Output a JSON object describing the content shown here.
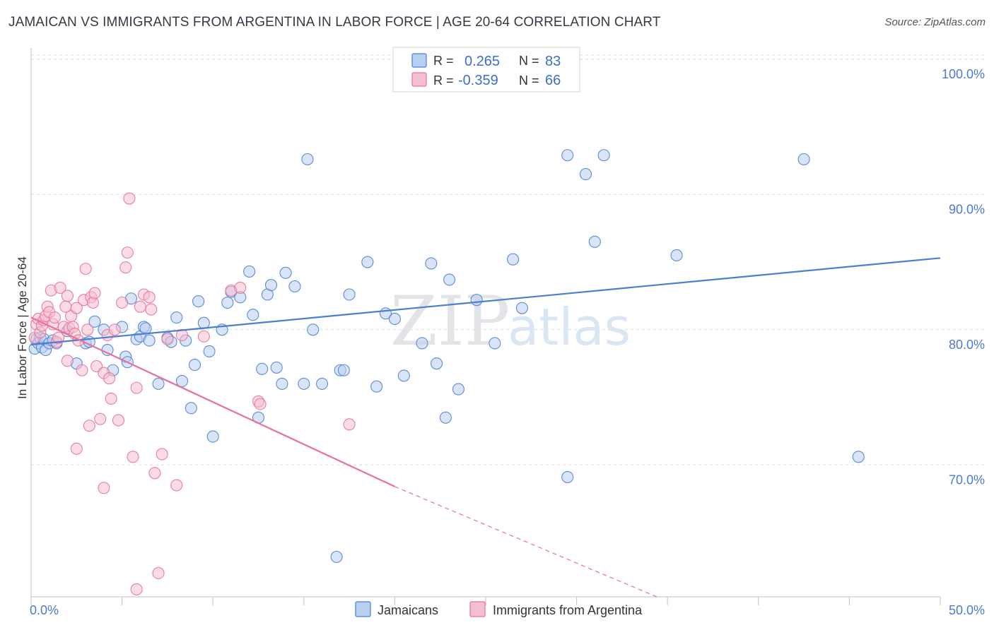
{
  "title": "JAMAICAN VS IMMIGRANTS FROM ARGENTINA IN LABOR FORCE | AGE 20-64 CORRELATION CHART",
  "source": "Source: ZipAtlas.com",
  "watermark": {
    "part1": "ZIP",
    "part2": "atlas"
  },
  "colors": {
    "blue": "#4a7fd4",
    "blue_fill": "#b9cff0",
    "pink": "#e8709a",
    "pink_fill": "#f6bfd0",
    "grid": "#d8d8d8",
    "tick_text": "#4a7bd0"
  },
  "legend": {
    "rows": [
      {
        "r_label": "R =",
        "r_value": "0.265",
        "n_label": "N =",
        "n_value": "83",
        "series": "blue"
      },
      {
        "r_label": "R =",
        "r_value": "-0.359",
        "n_label": "N =",
        "n_value": "66",
        "series": "pink"
      }
    ]
  },
  "chart_data": {
    "type": "scatter",
    "title": "JAMAICAN VS IMMIGRANTS FROM ARGENTINA IN LABOR FORCE | AGE 20-64 CORRELATION CHART",
    "xlabel": "",
    "ylabel": "In Labor Force | Age 20-64",
    "xlim": [
      0,
      50
    ],
    "ylim": [
      60,
      101
    ],
    "x_tick_labels": [
      "0.0%",
      "50.0%"
    ],
    "y_ticks": [
      70,
      80,
      90,
      100
    ],
    "y_tick_labels": [
      "70.0%",
      "80.0%",
      "90.0%",
      "100.0%"
    ],
    "grid": true,
    "legend_position": "top-center",
    "series": [
      {
        "name": "Jamaicans",
        "color": "#4a7fd4",
        "trend": {
          "x": [
            0,
            50
          ],
          "y": [
            78.9,
            85.3
          ],
          "style": "solid"
        },
        "points": [
          [
            0.2,
            78.6
          ],
          [
            0.3,
            79.3
          ],
          [
            0.4,
            79.0
          ],
          [
            0.5,
            79.4
          ],
          [
            0.6,
            78.7
          ],
          [
            0.7,
            79.3
          ],
          [
            0.8,
            78.5
          ],
          [
            1.0,
            79.0
          ],
          [
            1.2,
            79.2
          ],
          [
            1.4,
            79.0
          ],
          [
            2.0,
            79.9
          ],
          [
            2.5,
            77.5
          ],
          [
            3.0,
            79.0
          ],
          [
            3.2,
            79.1
          ],
          [
            3.5,
            80.6
          ],
          [
            4.0,
            80.0
          ],
          [
            4.2,
            78.5
          ],
          [
            4.5,
            77.0
          ],
          [
            5.0,
            80.2
          ],
          [
            5.2,
            78.0
          ],
          [
            5.3,
            77.6
          ],
          [
            5.5,
            82.3
          ],
          [
            5.8,
            79.3
          ],
          [
            6.0,
            79.5
          ],
          [
            6.2,
            80.2
          ],
          [
            6.3,
            80.1
          ],
          [
            6.5,
            79.2
          ],
          [
            7.0,
            76.0
          ],
          [
            7.5,
            79.4
          ],
          [
            7.7,
            79.1
          ],
          [
            8.0,
            80.9
          ],
          [
            8.3,
            76.2
          ],
          [
            8.5,
            79.2
          ],
          [
            8.8,
            74.2
          ],
          [
            9.0,
            77.4
          ],
          [
            9.2,
            82.1
          ],
          [
            9.5,
            80.5
          ],
          [
            9.8,
            78.4
          ],
          [
            10.0,
            72.1
          ],
          [
            10.5,
            80.0
          ],
          [
            10.8,
            82.0
          ],
          [
            11.0,
            82.8
          ],
          [
            11.5,
            82.4
          ],
          [
            12.0,
            84.3
          ],
          [
            12.2,
            81.1
          ],
          [
            12.5,
            73.5
          ],
          [
            12.7,
            77.1
          ],
          [
            13.0,
            82.6
          ],
          [
            13.2,
            83.3
          ],
          [
            13.5,
            77.2
          ],
          [
            13.8,
            76.0
          ],
          [
            14.0,
            84.2
          ],
          [
            14.5,
            83.2
          ],
          [
            15.0,
            76.0
          ],
          [
            15.2,
            92.6
          ],
          [
            15.5,
            80.0
          ],
          [
            16.0,
            76.0
          ],
          [
            17.0,
            77.0
          ],
          [
            17.2,
            77.0
          ],
          [
            17.5,
            82.6
          ],
          [
            16.8,
            63.2
          ],
          [
            18.5,
            85.0
          ],
          [
            19.0,
            75.8
          ],
          [
            19.5,
            81.2
          ],
          [
            20.0,
            80.8
          ],
          [
            20.5,
            76.6
          ],
          [
            21.5,
            79.0
          ],
          [
            22.0,
            84.9
          ],
          [
            22.3,
            77.5
          ],
          [
            22.8,
            73.5
          ],
          [
            23.0,
            83.7
          ],
          [
            23.5,
            75.6
          ],
          [
            24.5,
            82.2
          ],
          [
            25.5,
            79.0
          ],
          [
            26.5,
            85.2
          ],
          [
            27.0,
            81.6
          ],
          [
            29.5,
            92.9
          ],
          [
            30.5,
            91.5
          ],
          [
            31.0,
            86.5
          ],
          [
            31.5,
            92.9
          ],
          [
            35.5,
            85.5
          ],
          [
            42.5,
            92.6
          ],
          [
            45.5,
            70.6
          ],
          [
            29.5,
            69.1
          ]
        ]
      },
      {
        "name": "Immigrants from Argentina",
        "color": "#e8709a",
        "trend": {
          "x": [
            0,
            20
          ],
          "y": [
            80.9,
            68.4
          ],
          "style": "solid",
          "dashed_extension": {
            "x": [
              20,
              34.5
            ],
            "y": [
              68.4,
              60.2
            ]
          }
        },
        "points": [
          [
            0.2,
            79.4
          ],
          [
            0.3,
            80.4
          ],
          [
            0.4,
            80.8
          ],
          [
            0.5,
            79.8
          ],
          [
            0.6,
            80.3
          ],
          [
            0.7,
            80.7
          ],
          [
            0.8,
            81.0
          ],
          [
            0.9,
            81.7
          ],
          [
            1.0,
            81.3
          ],
          [
            1.1,
            82.9
          ],
          [
            1.2,
            80.4
          ],
          [
            1.3,
            80.9
          ],
          [
            1.4,
            79.1
          ],
          [
            1.5,
            79.4
          ],
          [
            1.6,
            83.1
          ],
          [
            1.8,
            80.2
          ],
          [
            1.9,
            81.7
          ],
          [
            2.0,
            82.5
          ],
          [
            2.1,
            80.1
          ],
          [
            2.2,
            81.0
          ],
          [
            2.3,
            80.2
          ],
          [
            2.4,
            79.7
          ],
          [
            2.5,
            81.6
          ],
          [
            2.6,
            79.2
          ],
          [
            2.8,
            77.0
          ],
          [
            2.9,
            82.2
          ],
          [
            3.0,
            84.5
          ],
          [
            3.1,
            80.0
          ],
          [
            3.3,
            82.4
          ],
          [
            3.4,
            82.0
          ],
          [
            3.5,
            82.7
          ],
          [
            3.6,
            77.3
          ],
          [
            3.8,
            73.4
          ],
          [
            4.0,
            76.8
          ],
          [
            4.2,
            79.6
          ],
          [
            4.3,
            76.4
          ],
          [
            4.4,
            74.9
          ],
          [
            4.6,
            80.0
          ],
          [
            4.8,
            73.3
          ],
          [
            5.0,
            82.0
          ],
          [
            5.2,
            84.6
          ],
          [
            5.3,
            85.7
          ],
          [
            5.4,
            89.7
          ],
          [
            5.6,
            70.6
          ],
          [
            5.8,
            75.7
          ],
          [
            6.0,
            81.7
          ],
          [
            6.2,
            82.6
          ],
          [
            6.5,
            82.4
          ],
          [
            6.6,
            81.5
          ],
          [
            6.8,
            69.4
          ],
          [
            7.0,
            62.0
          ],
          [
            7.2,
            70.8
          ],
          [
            7.5,
            79.3
          ],
          [
            8.0,
            68.5
          ],
          [
            8.3,
            79.6
          ],
          [
            9.5,
            79.5
          ],
          [
            11.0,
            82.9
          ],
          [
            11.5,
            83.1
          ],
          [
            12.5,
            74.7
          ],
          [
            12.6,
            74.5
          ],
          [
            17.5,
            73.0
          ],
          [
            2.0,
            77.7
          ],
          [
            3.2,
            72.9
          ],
          [
            2.5,
            71.2
          ],
          [
            4.0,
            68.3
          ],
          [
            5.8,
            60.8
          ]
        ]
      }
    ]
  }
}
